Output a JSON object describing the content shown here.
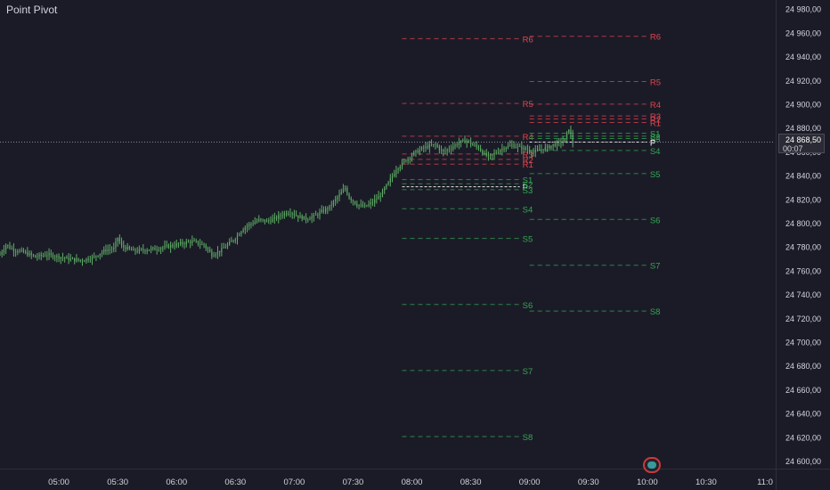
{
  "indicator": {
    "title": "Point Pivot"
  },
  "last_price": {
    "value": "24 868,50",
    "countdown": "00:07",
    "level": 24868.5
  },
  "event_marker": {
    "icon": "calendar-event-icon",
    "color": "#c93a3a"
  },
  "colors": {
    "background": "#1b1b27",
    "resistance": "#e0454f",
    "support": "#33a852",
    "pivot": "#ffffff",
    "candle": "#5dad64",
    "axis_text": "#d1d4dc"
  },
  "chart_data": {
    "type": "candlestick",
    "title": "Point Pivot",
    "y_axis": {
      "range": [
        24594,
        24988
      ],
      "ticks": [
        24980,
        24960,
        24940,
        24920,
        24900,
        24880,
        24860,
        24840,
        24820,
        24800,
        24780,
        24760,
        24740,
        24720,
        24700,
        24680,
        24660,
        24640,
        24620,
        24600
      ],
      "tick_labels": [
        "24 980,00",
        "24 960,00",
        "24 940,00",
        "24 920,00",
        "24 900,00",
        "24 880,00",
        "24 860,00",
        "24 840,00",
        "24 820,00",
        "24 800,00",
        "24 780,00",
        "24 760,00",
        "24 740,00",
        "24 720,00",
        "24 700,00",
        "24 680,00",
        "24 660,00",
        "24 640,00",
        "24 620,00",
        "24 600,00"
      ]
    },
    "x_axis": {
      "range_minutes": [
        270,
        665
      ],
      "tick_minutes": [
        300,
        330,
        360,
        390,
        420,
        450,
        480,
        510,
        540,
        570,
        600,
        630,
        660
      ],
      "tick_labels": [
        "05:00",
        "05:30",
        "06:00",
        "06:30",
        "07:00",
        "07:30",
        "08:00",
        "08:30",
        "09:00",
        "09:30",
        "10:00",
        "10:30",
        "11:0"
      ]
    },
    "price_path": [
      [
        270,
        24774
      ],
      [
        273,
        24782
      ],
      [
        277,
        24778
      ],
      [
        282,
        24776
      ],
      [
        288,
        24772
      ],
      [
        294,
        24774
      ],
      [
        300,
        24772
      ],
      [
        306,
        24770
      ],
      [
        312,
        24769
      ],
      [
        318,
        24772
      ],
      [
        324,
        24778
      ],
      [
        328,
        24779
      ],
      [
        330,
        24788
      ],
      [
        332,
        24781
      ],
      [
        338,
        24777
      ],
      [
        344,
        24778
      ],
      [
        350,
        24779
      ],
      [
        356,
        24781
      ],
      [
        362,
        24783
      ],
      [
        368,
        24785
      ],
      [
        374,
        24782
      ],
      [
        378,
        24774
      ],
      [
        382,
        24777
      ],
      [
        386,
        24782
      ],
      [
        390,
        24788
      ],
      [
        394,
        24796
      ],
      [
        398,
        24800
      ],
      [
        402,
        24803
      ],
      [
        406,
        24802
      ],
      [
        410,
        24804
      ],
      [
        414,
        24808
      ],
      [
        418,
        24810
      ],
      [
        422,
        24806
      ],
      [
        426,
        24804
      ],
      [
        430,
        24806
      ],
      [
        434,
        24810
      ],
      [
        438,
        24814
      ],
      [
        442,
        24822
      ],
      [
        446,
        24830
      ],
      [
        448,
        24822
      ],
      [
        452,
        24816
      ],
      [
        456,
        24814
      ],
      [
        460,
        24818
      ],
      [
        464,
        24824
      ],
      [
        468,
        24834
      ],
      [
        472,
        24846
      ],
      [
        476,
        24852
      ],
      [
        480,
        24858
      ],
      [
        484,
        24862
      ],
      [
        488,
        24865
      ],
      [
        492,
        24866
      ],
      [
        496,
        24860
      ],
      [
        500,
        24864
      ],
      [
        504,
        24868
      ],
      [
        508,
        24870
      ],
      [
        511,
        24866
      ],
      [
        514,
        24864
      ],
      [
        517,
        24858
      ],
      [
        520,
        24856
      ],
      [
        523,
        24860
      ],
      [
        527,
        24864
      ],
      [
        531,
        24866
      ],
      [
        535,
        24864
      ],
      [
        539,
        24862
      ],
      [
        542,
        24860
      ],
      [
        545,
        24862
      ],
      [
        549,
        24864
      ],
      [
        552,
        24866
      ],
      [
        555,
        24868
      ],
      [
        558,
        24870
      ],
      [
        560,
        24880
      ],
      [
        562,
        24868
      ]
    ],
    "pivot_sets": [
      {
        "session": "prior",
        "start_minute": 475,
        "end_minute": 535,
        "levels": [
          {
            "name": "R6",
            "value": 24955.5
          },
          {
            "name": "R5",
            "value": 24901.0
          },
          {
            "name": "R4",
            "value": 24873.5
          },
          {
            "name": "R3",
            "value": 24858.5
          },
          {
            "name": "R2",
            "value": 24854.0
          },
          {
            "name": "R1",
            "value": 24850.0
          },
          {
            "name": "P",
            "value": 24831.0
          },
          {
            "name": "S1",
            "value": 24837.0
          },
          {
            "name": "S2",
            "value": 24833.5
          },
          {
            "name": "S3",
            "value": 24828.5
          },
          {
            "name": "S4",
            "value": 24812.5
          },
          {
            "name": "S5",
            "value": 24787.5
          },
          {
            "name": "S6",
            "value": 24732.0
          },
          {
            "name": "S7",
            "value": 24676.5
          },
          {
            "name": "S8",
            "value": 24621.0
          }
        ]
      },
      {
        "session": "current",
        "start_minute": 540,
        "end_minute": 600,
        "levels": [
          {
            "name": "R6",
            "value": 24957.5
          },
          {
            "name": "R5",
            "value": 24919.5
          },
          {
            "name": "R4",
            "value": 24900.5
          },
          {
            "name": "R3",
            "value": 24890.5
          },
          {
            "name": "R2",
            "value": 24888.0
          },
          {
            "name": "R1",
            "value": 24885.0
          },
          {
            "name": "S1",
            "value": 24876.0
          },
          {
            "name": "S2",
            "value": 24873.5
          },
          {
            "name": "S3",
            "value": 24871.5
          },
          {
            "name": "P",
            "value": 24868.5
          },
          {
            "name": "S4",
            "value": 24861.5
          },
          {
            "name": "S5",
            "value": 24842.0
          },
          {
            "name": "S6",
            "value": 24803.5
          },
          {
            "name": "S7",
            "value": 24765.0
          },
          {
            "name": "S8",
            "value": 24726.5
          }
        ]
      }
    ]
  }
}
